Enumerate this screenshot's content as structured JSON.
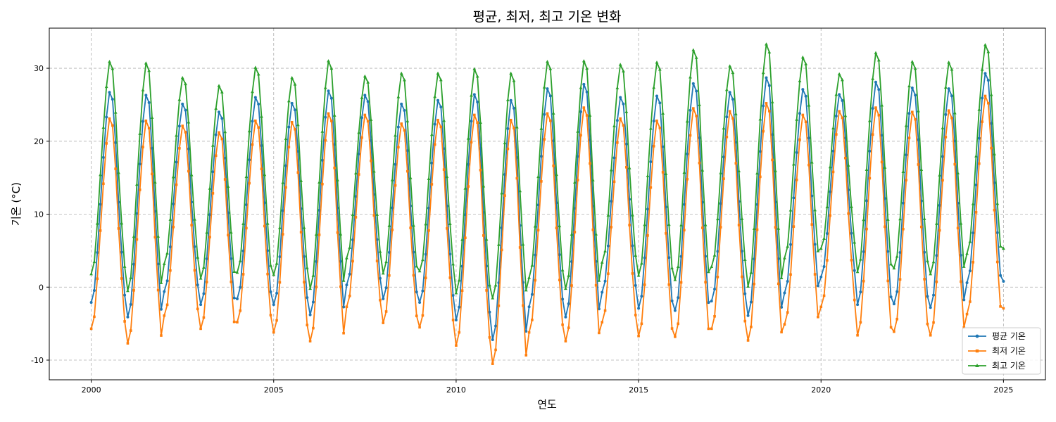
{
  "chart_data": {
    "type": "line",
    "title": "평균, 최저, 최고 기온 변화",
    "xlabel": "연도",
    "ylabel": "기온 (°C)",
    "xlim": [
      1998.85,
      2026.15
    ],
    "ylim": [
      -12.7,
      35.5
    ],
    "xticks": [
      2000,
      2005,
      2010,
      2015,
      2020,
      2025
    ],
    "yticks": [
      -10,
      0,
      10,
      20,
      30
    ],
    "grid": true,
    "legend_position": "lower-right",
    "series": [
      {
        "name": "평균 기온",
        "color": "#1f77b4",
        "marker": "circle"
      },
      {
        "name": "최저 기온",
        "color": "#ff7f0e",
        "marker": "square"
      },
      {
        "name": "최고 기온",
        "color": "#2ca02c",
        "marker": "triangle"
      }
    ],
    "start_year": 2000,
    "annual_extremes": [
      {
        "year": 2000,
        "mean_min": -2.1,
        "mean_max": 26.7,
        "low_min": -5.7,
        "low_max": 23.1,
        "high_min": 1.8,
        "high_max": 30.9
      },
      {
        "year": 2001,
        "mean_min": -4.1,
        "mean_max": 26.3,
        "low_min": -7.7,
        "low_max": 22.8,
        "high_min": -0.5,
        "high_max": 30.7
      },
      {
        "year": 2002,
        "mean_min": -0.6,
        "mean_max": 25.1,
        "low_min": -3.9,
        "low_max": 22.1,
        "high_min": 3.2,
        "high_max": 28.7
      },
      {
        "year": 2003,
        "mean_min": -2.4,
        "mean_max": 24.0,
        "low_min": -5.7,
        "low_max": 21.2,
        "high_min": 1.2,
        "high_max": 27.6
      },
      {
        "year": 2004,
        "mean_min": -1.6,
        "mean_max": 26.0,
        "low_min": -4.8,
        "low_max": 22.8,
        "high_min": 2.0,
        "high_max": 30.1
      },
      {
        "year": 2005,
        "mean_min": -2.4,
        "mean_max": 25.2,
        "low_min": -6.2,
        "low_max": 22.6,
        "high_min": 1.7,
        "high_max": 28.7
      },
      {
        "year": 2006,
        "mean_min": -3.8,
        "mean_max": 26.9,
        "low_min": -7.4,
        "low_max": 23.8,
        "high_min": -0.2,
        "high_max": 31.0
      },
      {
        "year": 2007,
        "mean_min": 0.3,
        "mean_max": 26.3,
        "low_min": -2.7,
        "low_max": 23.6,
        "high_min": 4.0,
        "high_max": 28.9
      },
      {
        "year": 2008,
        "mean_min": -1.6,
        "mean_max": 25.1,
        "low_min": -4.9,
        "low_max": 22.4,
        "high_min": 1.9,
        "high_max": 29.3
      },
      {
        "year": 2009,
        "mean_min": -2.1,
        "mean_max": 25.6,
        "low_min": -5.5,
        "low_max": 22.9,
        "high_min": 2.2,
        "high_max": 29.3
      },
      {
        "year": 2010,
        "mean_min": -4.5,
        "mean_max": 26.4,
        "low_min": -8.0,
        "low_max": 23.6,
        "high_min": -0.8,
        "high_max": 29.9
      },
      {
        "year": 2011,
        "mean_min": -7.2,
        "mean_max": 25.6,
        "low_min": -10.5,
        "low_max": 22.9,
        "high_min": -1.5,
        "high_max": 29.3
      },
      {
        "year": 2012,
        "mean_min": -2.7,
        "mean_max": 27.2,
        "low_min": -6.2,
        "low_max": 23.8,
        "high_min": 1.3,
        "high_max": 30.9
      },
      {
        "year": 2013,
        "mean_min": -4.1,
        "mean_max": 27.8,
        "low_min": -7.4,
        "low_max": 24.6,
        "high_min": -0.2,
        "high_max": 31.0
      },
      {
        "year": 2014,
        "mean_min": -0.7,
        "mean_max": 26.0,
        "low_min": -4.8,
        "low_max": 23.1,
        "high_min": 3.4,
        "high_max": 30.5
      },
      {
        "year": 2015,
        "mean_min": -2.9,
        "mean_max": 26.2,
        "low_min": -6.7,
        "low_max": 22.8,
        "high_min": 1.6,
        "high_max": 30.8
      },
      {
        "year": 2016,
        "mean_min": -3.2,
        "mean_max": 27.9,
        "low_min": -6.8,
        "low_max": 24.5,
        "high_min": 1.0,
        "high_max": 32.5
      },
      {
        "year": 2017,
        "mean_min": -1.9,
        "mean_max": 26.7,
        "low_min": -5.7,
        "low_max": 24.1,
        "high_min": 2.8,
        "high_max": 30.3
      },
      {
        "year": 2018,
        "mean_min": -3.9,
        "mean_max": 28.7,
        "low_min": -7.3,
        "low_max": 25.2,
        "high_min": 0.1,
        "high_max": 33.3
      },
      {
        "year": 2019,
        "mean_min": -0.8,
        "mean_max": 27.1,
        "low_min": -5.1,
        "low_max": 23.6,
        "high_min": 4.0,
        "high_max": 31.5
      },
      {
        "year": 2020,
        "mean_min": 1.4,
        "mean_max": 26.4,
        "low_min": -2.7,
        "low_max": 24.1,
        "high_min": 5.3,
        "high_max": 29.2
      },
      {
        "year": 2021,
        "mean_min": -2.4,
        "mean_max": 28.1,
        "low_min": -6.6,
        "low_max": 24.6,
        "high_min": 2.1,
        "high_max": 32.1
      },
      {
        "year": 2022,
        "mean_min": -2.3,
        "mean_max": 27.3,
        "low_min": -6.1,
        "low_max": 24.0,
        "high_min": 2.6,
        "high_max": 30.9
      },
      {
        "year": 2023,
        "mean_min": -2.8,
        "mean_max": 27.2,
        "low_min": -6.6,
        "low_max": 24.2,
        "high_min": 1.8,
        "high_max": 30.8
      },
      {
        "year": 2024,
        "mean_min": 0.6,
        "mean_max": 29.3,
        "low_min": -3.7,
        "low_max": 26.2,
        "high_min": 4.6,
        "high_max": 33.2
      }
    ],
    "final_point": {
      "x": "2025-01",
      "mean": 0.8,
      "low": -2.9,
      "high": 5.3
    }
  }
}
